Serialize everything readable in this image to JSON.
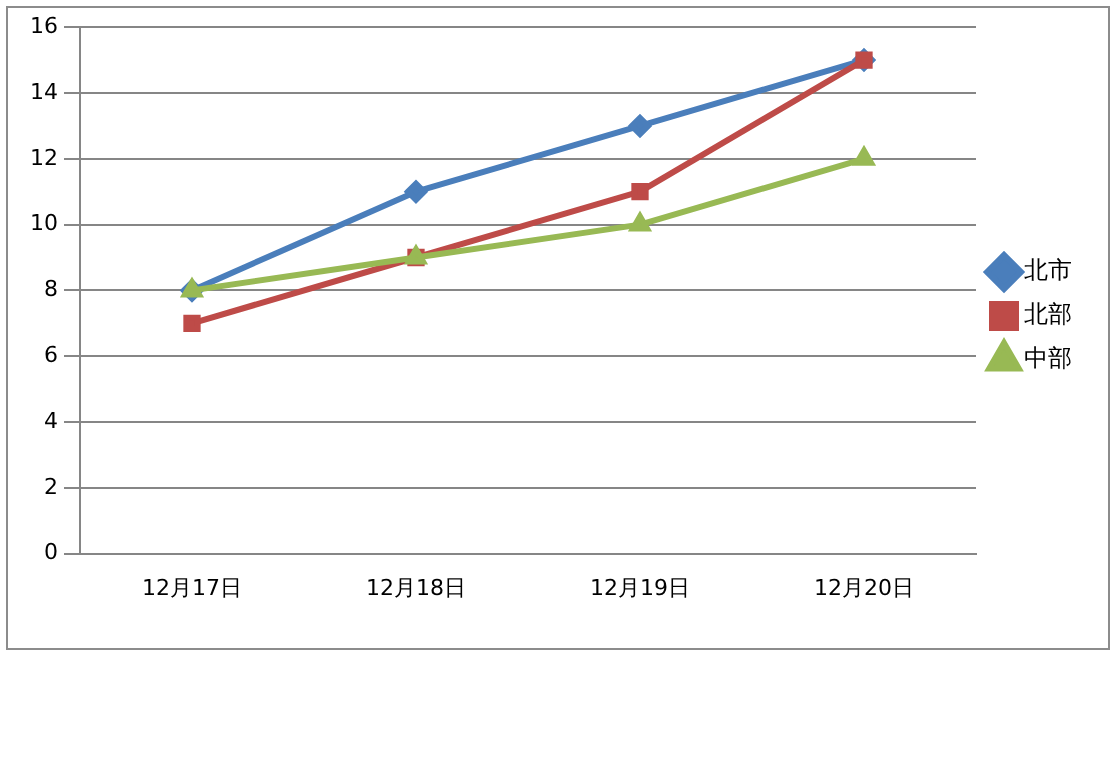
{
  "chart_data": {
    "type": "line",
    "categories": [
      "12月17日",
      "12月18日",
      "12月19日",
      "12月20日"
    ],
    "series": [
      {
        "name": "北市",
        "color": "#4a7ebb",
        "marker": "diamond",
        "values": [
          8,
          11,
          13,
          15
        ]
      },
      {
        "name": "北部",
        "color": "#be4b48",
        "marker": "square",
        "values": [
          7,
          9,
          11,
          15
        ]
      },
      {
        "name": "中部",
        "color": "#98b954",
        "marker": "triangle",
        "values": [
          8,
          9,
          10,
          12
        ]
      }
    ],
    "ylim": [
      0,
      16
    ],
    "yticks": [
      0,
      2,
      4,
      6,
      8,
      10,
      12,
      14,
      16
    ],
    "grid": "y",
    "legend": "right",
    "line_style": "solid"
  }
}
